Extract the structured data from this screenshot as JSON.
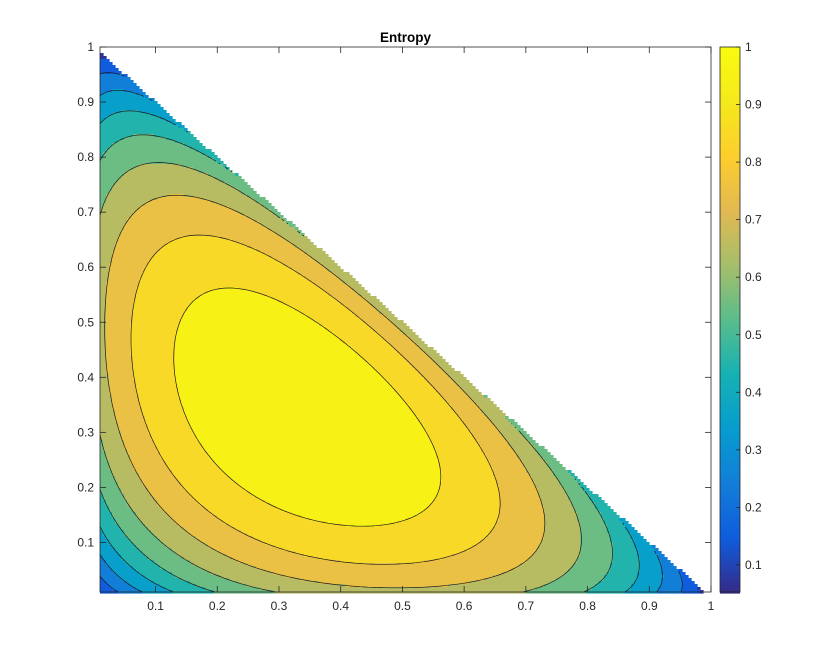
{
  "chart_data": {
    "type": "heatmap",
    "subtype": "filled-contour",
    "title": "Entropy",
    "xlabel": "",
    "ylabel": "",
    "xlim": [
      0.01,
      1
    ],
    "ylim": [
      0.01,
      1
    ],
    "x_ticks": [
      "0.1",
      "0.2",
      "0.3",
      "0.4",
      "0.5",
      "0.6",
      "0.7",
      "0.8",
      "0.9",
      "1"
    ],
    "y_ticks": [
      "0.1",
      "0.2",
      "0.3",
      "0.4",
      "0.5",
      "0.6",
      "0.7",
      "0.8",
      "0.9",
      "1"
    ],
    "function": "normalized 3-outcome entropy H(x, y, 1-x-y) / log(3)",
    "domain": "x + y <= 1",
    "contour_levels": [
      0.1,
      0.2,
      0.3,
      0.4,
      0.5,
      0.6,
      0.7,
      0.8,
      0.9
    ],
    "colorbar": {
      "colormap": "parula",
      "range": [
        0.053,
        1
      ],
      "ticks": [
        "0.1",
        "0.2",
        "0.3",
        "0.4",
        "0.5",
        "0.6",
        "0.7",
        "0.8",
        "0.9",
        "1"
      ],
      "placement": "right"
    },
    "grid": false
  }
}
